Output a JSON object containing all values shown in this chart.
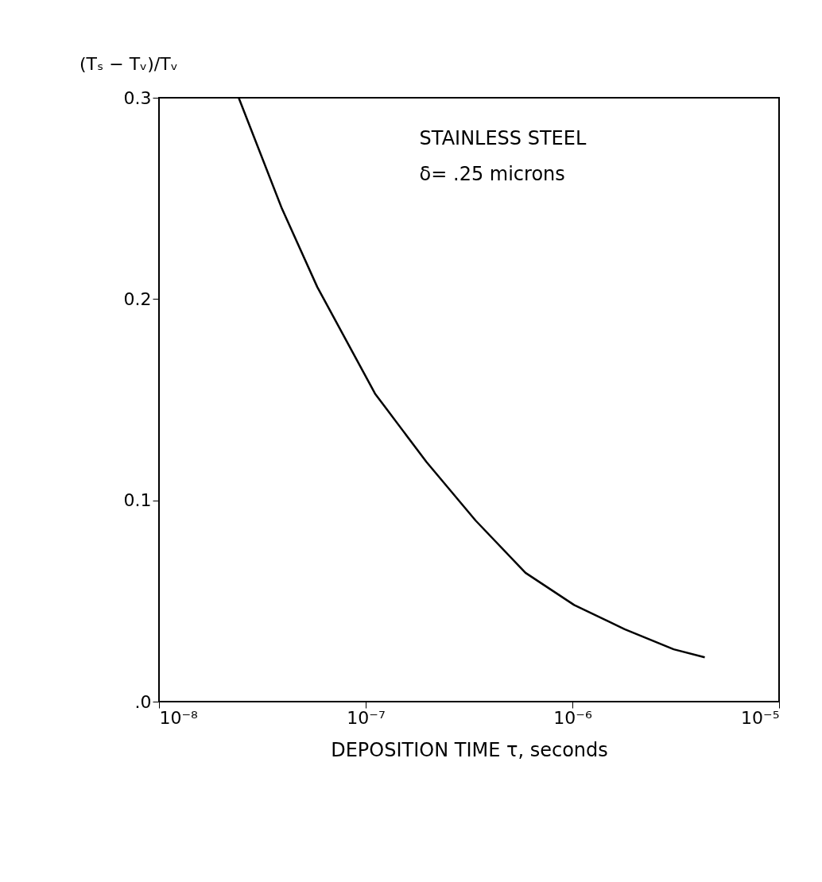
{
  "chart_data": {
    "type": "line",
    "log": "x",
    "grid": false,
    "marker": "none",
    "line_style": "solid",
    "xlabel": "DEPOSITION TIME τ, seconds",
    "ylabel": "(Tₛ − Tᵥ)/Tᵥ",
    "xlim": [
      1e-08,
      1e-05
    ],
    "ylim": [
      0,
      0.3
    ],
    "xticks": [
      {
        "value": 1e-08,
        "label": "10⁻⁸"
      },
      {
        "value": 1e-07,
        "label": "10⁻⁷"
      },
      {
        "value": 1e-06,
        "label": "10⁻⁶"
      },
      {
        "value": 1e-05,
        "label": "10⁻⁵"
      }
    ],
    "yticks": [
      {
        "value": 0,
        "label": ".0"
      },
      0.1,
      0.2,
      0.3
    ],
    "annotations": [
      "STAINLESS STEEL",
      "δ= .25 microns"
    ],
    "series": [
      {
        "color": "#000000",
        "x": [
          2.43e-08,
          3.93e-08,
          5.83e-08,
          1.11e-07,
          1.97e-07,
          3.4e-07,
          5.93e-07,
          1.02e-06,
          1.79e-06,
          3.09e-06,
          4.37e-06
        ],
        "values": [
          0.3,
          0.245,
          0.206,
          0.153,
          0.119,
          0.09,
          0.064,
          0.048,
          0.036,
          0.026,
          0.022
        ]
      }
    ]
  }
}
